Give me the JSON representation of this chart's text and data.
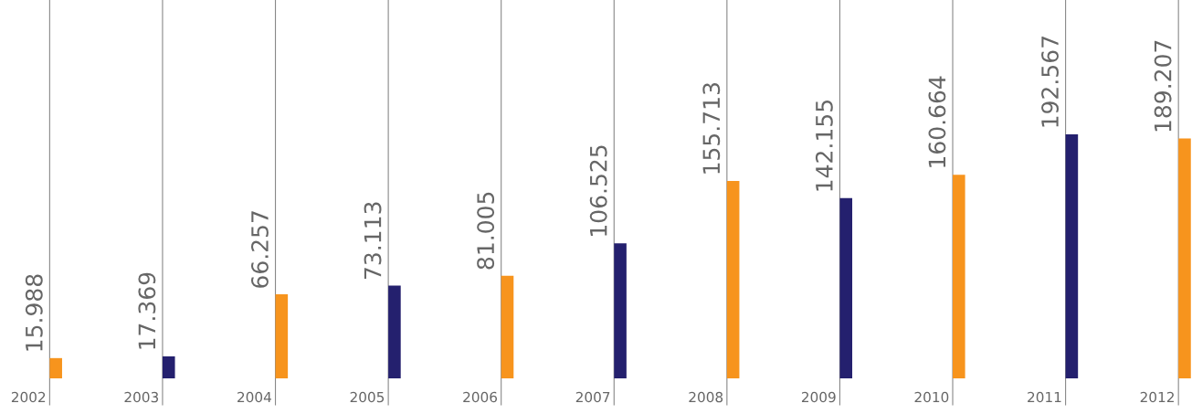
{
  "chart_data": {
    "type": "bar",
    "categories": [
      "2002",
      "2003",
      "2004",
      "2005",
      "2006",
      "2007",
      "2008",
      "2009",
      "2010",
      "2011",
      "2012"
    ],
    "values": [
      15.988,
      17.369,
      66.257,
      73.113,
      81.005,
      106.525,
      155.713,
      142.155,
      160.664,
      192.567,
      189.207
    ],
    "colors": [
      "#f7941d",
      "#24206e",
      "#f7941d",
      "#24206e",
      "#f7941d",
      "#24206e",
      "#f7941d",
      "#24206e",
      "#f7941d",
      "#24206e",
      "#f7941d"
    ],
    "data_labels": true
  }
}
